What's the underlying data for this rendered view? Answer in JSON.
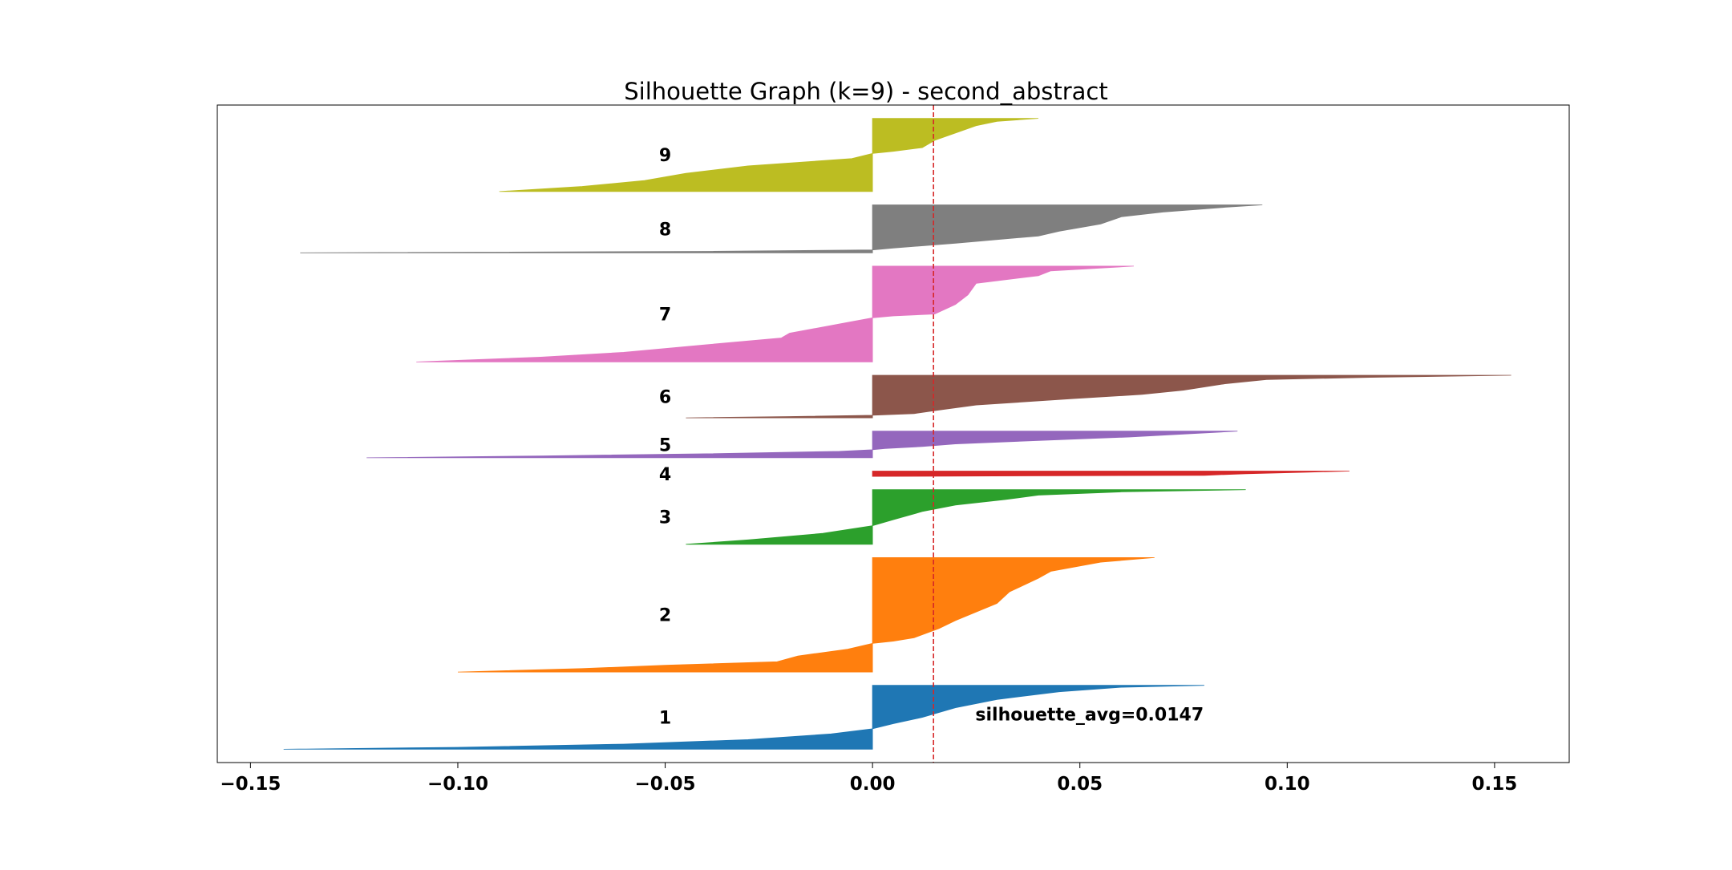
{
  "chart_data": {
    "type": "area",
    "title": "Silhouette Graph (k=9) - second_abstract",
    "xlabel": "",
    "ylabel": "",
    "xlim": [
      -0.158,
      0.168
    ],
    "grid": false,
    "x_ticks": [
      -0.15,
      -0.1,
      -0.05,
      0.0,
      0.05,
      0.1,
      0.15
    ],
    "x_tick_labels": [
      "−0.15",
      "−0.10",
      "−0.05",
      "0.00",
      "0.05",
      "0.10",
      "0.15"
    ],
    "average_line": {
      "value": 0.0147,
      "color": "#d62728",
      "style": "dashed"
    },
    "annotation": "silhouette_avg=0.0147",
    "clusters": [
      {
        "label": "1",
        "color": "#1f77b4",
        "size": 48,
        "profile": [
          [
            0.0,
            0.08
          ],
          [
            0.03,
            0.06
          ],
          [
            0.1,
            0.045
          ],
          [
            0.22,
            0.03
          ],
          [
            0.35,
            0.02
          ],
          [
            0.5,
            0.012
          ],
          [
            0.6,
            0.005
          ],
          [
            0.68,
            0.0
          ],
          [
            0.76,
            -0.01
          ],
          [
            0.85,
            -0.03
          ],
          [
            0.92,
            -0.06
          ],
          [
            0.97,
            -0.1
          ],
          [
            1.0,
            -0.142
          ]
        ]
      },
      {
        "label": "2",
        "color": "#ff7f0e",
        "size": 86,
        "profile": [
          [
            0.0,
            0.068
          ],
          [
            0.04,
            0.055
          ],
          [
            0.12,
            0.043
          ],
          [
            0.18,
            0.04
          ],
          [
            0.3,
            0.033
          ],
          [
            0.4,
            0.03
          ],
          [
            0.55,
            0.02
          ],
          [
            0.62,
            0.016
          ],
          [
            0.7,
            0.01
          ],
          [
            0.73,
            0.005
          ],
          [
            0.75,
            0.0
          ],
          [
            0.8,
            -0.006
          ],
          [
            0.86,
            -0.018
          ],
          [
            0.91,
            -0.023
          ],
          [
            0.94,
            -0.05
          ],
          [
            0.97,
            -0.07
          ],
          [
            1.0,
            -0.1
          ]
        ]
      },
      {
        "label": "3",
        "color": "#2ca02c",
        "size": 41,
        "profile": [
          [
            0.0,
            0.09
          ],
          [
            0.04,
            0.06
          ],
          [
            0.1,
            0.04
          ],
          [
            0.18,
            0.032
          ],
          [
            0.28,
            0.02
          ],
          [
            0.4,
            0.012
          ],
          [
            0.55,
            0.005
          ],
          [
            0.66,
            0.0
          ],
          [
            0.8,
            -0.012
          ],
          [
            0.92,
            -0.03
          ],
          [
            1.0,
            -0.045
          ]
        ]
      },
      {
        "label": "4",
        "color": "#d62728",
        "size": 4,
        "profile": [
          [
            0.0,
            0.115
          ],
          [
            0.2,
            0.105
          ],
          [
            0.5,
            0.09
          ],
          [
            0.8,
            0.08
          ],
          [
            1.0,
            0.0
          ]
        ]
      },
      {
        "label": "5",
        "color": "#9467bd",
        "size": 20,
        "profile": [
          [
            0.0,
            0.088
          ],
          [
            0.15,
            0.07
          ],
          [
            0.22,
            0.062
          ],
          [
            0.35,
            0.04
          ],
          [
            0.48,
            0.02
          ],
          [
            0.58,
            0.012
          ],
          [
            0.65,
            0.003
          ],
          [
            0.7,
            0.0
          ],
          [
            0.76,
            -0.008
          ],
          [
            0.85,
            -0.04
          ],
          [
            0.93,
            -0.08
          ],
          [
            1.0,
            -0.122
          ]
        ]
      },
      {
        "label": "6",
        "color": "#8c564b",
        "size": 32,
        "profile": [
          [
            0.0,
            0.154
          ],
          [
            0.05,
            0.12
          ],
          [
            0.1,
            0.095
          ],
          [
            0.2,
            0.085
          ],
          [
            0.35,
            0.075
          ],
          [
            0.45,
            0.065
          ],
          [
            0.55,
            0.048
          ],
          [
            0.7,
            0.025
          ],
          [
            0.83,
            0.015
          ],
          [
            0.9,
            0.01
          ],
          [
            0.94,
            0.0
          ],
          [
            0.97,
            -0.02
          ],
          [
            1.0,
            -0.045
          ]
        ]
      },
      {
        "label": "7",
        "color": "#e377c2",
        "size": 72,
        "profile": [
          [
            0.0,
            0.063
          ],
          [
            0.05,
            0.043
          ],
          [
            0.1,
            0.04
          ],
          [
            0.18,
            0.025
          ],
          [
            0.3,
            0.023
          ],
          [
            0.4,
            0.02
          ],
          [
            0.5,
            0.015
          ],
          [
            0.52,
            0.005
          ],
          [
            0.54,
            0.0
          ],
          [
            0.58,
            -0.005
          ],
          [
            0.7,
            -0.02
          ],
          [
            0.75,
            -0.022
          ],
          [
            0.82,
            -0.04
          ],
          [
            0.9,
            -0.06
          ],
          [
            0.95,
            -0.08
          ],
          [
            1.0,
            -0.11
          ]
        ]
      },
      {
        "label": "8",
        "color": "#7f7f7f",
        "size": 36,
        "profile": [
          [
            0.0,
            0.094
          ],
          [
            0.05,
            0.085
          ],
          [
            0.15,
            0.07
          ],
          [
            0.25,
            0.06
          ],
          [
            0.4,
            0.055
          ],
          [
            0.55,
            0.045
          ],
          [
            0.65,
            0.04
          ],
          [
            0.8,
            0.02
          ],
          [
            0.9,
            0.005
          ],
          [
            0.94,
            0.0
          ],
          [
            0.97,
            -0.04
          ],
          [
            1.0,
            -0.138
          ]
        ]
      },
      {
        "label": "9",
        "color": "#bcbd22",
        "size": 55,
        "profile": [
          [
            0.0,
            0.04
          ],
          [
            0.04,
            0.03
          ],
          [
            0.1,
            0.025
          ],
          [
            0.2,
            0.02
          ],
          [
            0.3,
            0.015
          ],
          [
            0.4,
            0.012
          ],
          [
            0.45,
            0.005
          ],
          [
            0.48,
            0.0
          ],
          [
            0.55,
            -0.005
          ],
          [
            0.65,
            -0.03
          ],
          [
            0.75,
            -0.045
          ],
          [
            0.85,
            -0.055
          ],
          [
            0.93,
            -0.07
          ],
          [
            1.0,
            -0.09
          ]
        ]
      }
    ]
  }
}
